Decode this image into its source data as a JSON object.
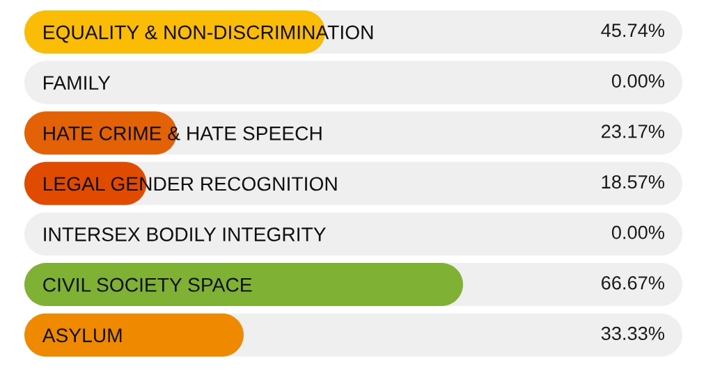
{
  "chart_data": {
    "type": "bar",
    "orientation": "horizontal",
    "categories": [
      "EQUALITY & NON-DISCRIMINATION",
      "FAMILY",
      "HATE CRIME & HATE SPEECH",
      "LEGAL GENDER RECOGNITION",
      "INTERSEX BODILY INTEGRITY",
      "CIVIL SOCIETY SPACE",
      "ASYLUM"
    ],
    "series": [
      {
        "colors": [
          "#fbbc05",
          "#efefef",
          "#e36205",
          "#e04b00",
          "#efefef",
          "#7fb135",
          "#ef8a00"
        ],
        "values": [
          45.74,
          0.0,
          23.17,
          18.57,
          0.0,
          66.67,
          33.33
        ],
        "value_labels": [
          "45.74%",
          "0.00%",
          "23.17%",
          "18.57%",
          "0.00%",
          "66.67%",
          "33.33%"
        ]
      }
    ],
    "xlim": [
      0,
      100
    ],
    "tick_labels": "y"
  }
}
